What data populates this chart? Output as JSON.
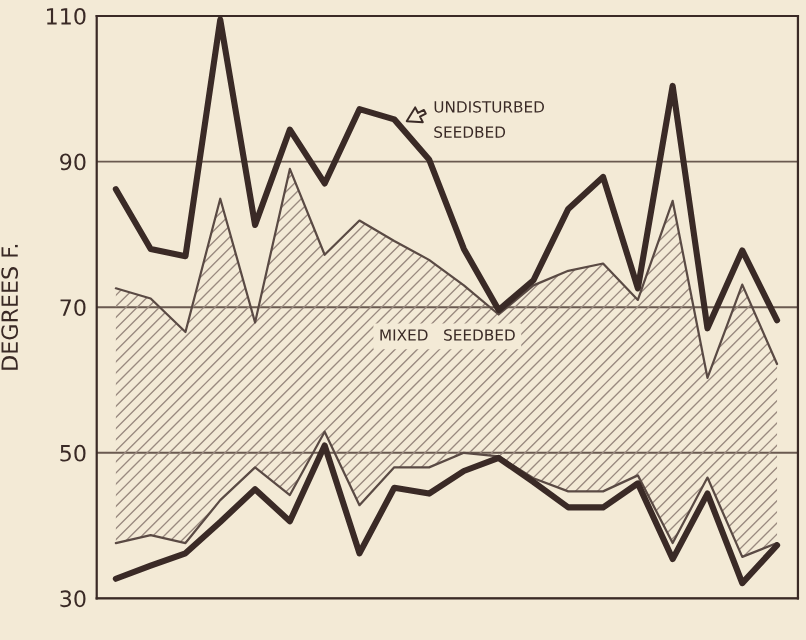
{
  "chart_data": {
    "type": "line",
    "ylabel": "DEGREES F.",
    "categories": [
      null,
      null,
      null,
      null,
      null,
      null,
      null,
      null,
      null,
      null,
      null,
      null,
      null,
      null,
      null,
      null,
      null,
      null,
      null,
      null
    ],
    "ylim": [
      30,
      110
    ],
    "yticks": [
      30,
      50,
      70,
      90,
      110
    ],
    "tick_labels": "y",
    "grid": true,
    "legend": false,
    "marker": "none",
    "line_style": "solid",
    "series": [
      {
        "color": "#5a4a44",
        "values": [
          72.6,
          71.2,
          66.6,
          84.9,
          67.9,
          89,
          77.2,
          81.9,
          79.1,
          76.5,
          73,
          69,
          73,
          75,
          76,
          71,
          84.6,
          60.3,
          73.1,
          62.2
        ],
        "upper": [
          72.6,
          71.2,
          66.6,
          84.9,
          67.9,
          89,
          77.2,
          81.9,
          79.1,
          76.5,
          73,
          69,
          73,
          75,
          76,
          71,
          84.6,
          60.3,
          73.1,
          62.2
        ],
        "lower": [
          37.6,
          38.7,
          37.6,
          43.5,
          48,
          44.2,
          52.9,
          42.8,
          48,
          48,
          50,
          49.5,
          46.5,
          44.7,
          44.7,
          46.9,
          37.6,
          46.6,
          35.7,
          37.6
        ]
      },
      {
        "color": "#5a4a44",
        "values": [
          37.6,
          38.7,
          37.6,
          43.5,
          48,
          44.2,
          52.9,
          42.8,
          48,
          48,
          50,
          49.5,
          46.5,
          44.7,
          44.7,
          46.9,
          37.6,
          46.6,
          35.7,
          37.6
        ]
      },
      {
        "color": "#3a2a26",
        "values": [
          86.2,
          78,
          77,
          109.5,
          81.3,
          94.4,
          87,
          97.2,
          95.8,
          90.3,
          78,
          69.6,
          73.7,
          83.5,
          87.9,
          72.6,
          100.4,
          67.1,
          77.8,
          68.2
        ]
      },
      {
        "color": "#3a2a26",
        "values": [
          32.7,
          34.5,
          36.2,
          40.5,
          45,
          40.6,
          51,
          36.2,
          45.2,
          44.4,
          47.5,
          49.3,
          46,
          42.5,
          42.5,
          45.8,
          35.4,
          44.4,
          32.1,
          37.3
        ]
      }
    ],
    "annotations": [
      "UNDISTURBED\nSEEDBED",
      "MIXED   SEEDBED"
    ]
  }
}
